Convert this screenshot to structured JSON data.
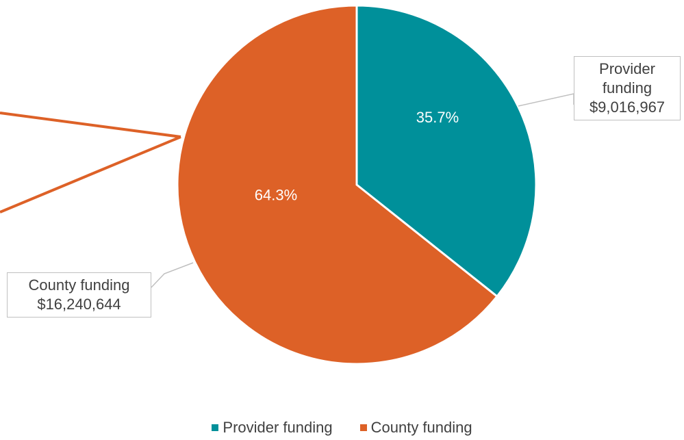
{
  "chart_data": {
    "type": "pie",
    "categories": [
      "Provider funding",
      "County funding"
    ],
    "values": [
      35.7,
      64.3
    ],
    "value_labels": [
      "35.7%",
      "64.3%"
    ],
    "amounts": [
      9016967,
      16240644
    ],
    "amount_labels": [
      "$9,016,967",
      "$16,240,644"
    ],
    "colors": [
      "#00909a",
      "#dd6127"
    ],
    "legend": "bottom"
  }
}
